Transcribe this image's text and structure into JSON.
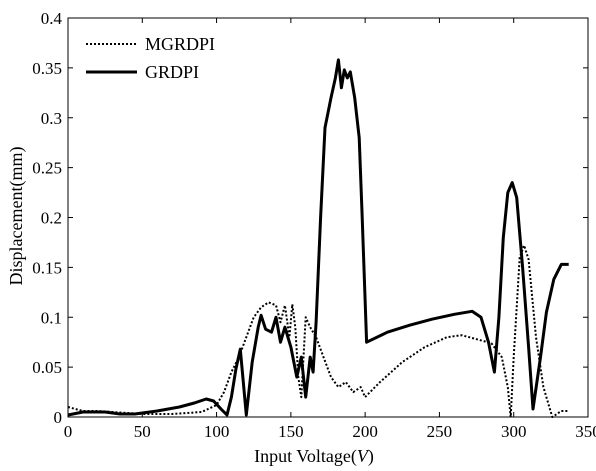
{
  "chart_data": {
    "type": "line",
    "xlabel": "Input Voltage(V)",
    "xlabel_parts": {
      "prefix": "Input Voltage(",
      "var": "V",
      "suffix": ")"
    },
    "ylabel": "Displacement(mm)",
    "xlim": [
      0,
      350
    ],
    "ylim": [
      0,
      0.4
    ],
    "xticks": [
      0,
      50,
      100,
      150,
      200,
      250,
      300,
      350
    ],
    "yticks": [
      0,
      0.05,
      0.1,
      0.15,
      0.2,
      0.25,
      0.3,
      0.35,
      0.4
    ],
    "xtick_labels": [
      "0",
      "50",
      "100",
      "150",
      "200",
      "250",
      "300",
      "350"
    ],
    "ytick_labels": [
      "0",
      "0.05",
      "0.1",
      "0.15",
      "0.2",
      "0.25",
      "0.3",
      "0.35",
      "0.4"
    ],
    "grid": false,
    "legend_position": "top-left",
    "series": [
      {
        "name": "MGRDPI",
        "style": "dotted",
        "color": "#000000",
        "points": [
          [
            0,
            0.01
          ],
          [
            5,
            0.008
          ],
          [
            10,
            0.006
          ],
          [
            20,
            0.006
          ],
          [
            30,
            0.005
          ],
          [
            40,
            0.004
          ],
          [
            50,
            0.003
          ],
          [
            60,
            0.003
          ],
          [
            70,
            0.003
          ],
          [
            80,
            0.004
          ],
          [
            90,
            0.005
          ],
          [
            100,
            0.012
          ],
          [
            105,
            0.025
          ],
          [
            110,
            0.045
          ],
          [
            115,
            0.06
          ],
          [
            120,
            0.08
          ],
          [
            125,
            0.1
          ],
          [
            130,
            0.11
          ],
          [
            135,
            0.115
          ],
          [
            140,
            0.112
          ],
          [
            143,
            0.095
          ],
          [
            146,
            0.112
          ],
          [
            149,
            0.08
          ],
          [
            151,
            0.113
          ],
          [
            153,
            0.09
          ],
          [
            155,
            0.04
          ],
          [
            157,
            0.02
          ],
          [
            160,
            0.1
          ],
          [
            163,
            0.09
          ],
          [
            167,
            0.08
          ],
          [
            172,
            0.06
          ],
          [
            177,
            0.04
          ],
          [
            182,
            0.03
          ],
          [
            187,
            0.035
          ],
          [
            192,
            0.025
          ],
          [
            197,
            0.03
          ],
          [
            200,
            0.02
          ],
          [
            210,
            0.035
          ],
          [
            225,
            0.055
          ],
          [
            240,
            0.07
          ],
          [
            255,
            0.08
          ],
          [
            265,
            0.082
          ],
          [
            275,
            0.078
          ],
          [
            285,
            0.074
          ],
          [
            292,
            0.06
          ],
          [
            296,
            0.03
          ],
          [
            298,
            0.0
          ],
          [
            300,
            0.06
          ],
          [
            304,
            0.16
          ],
          [
            307,
            0.172
          ],
          [
            310,
            0.158
          ],
          [
            315,
            0.08
          ],
          [
            320,
            0.03
          ],
          [
            326,
            0.0
          ],
          [
            332,
            0.006
          ],
          [
            337,
            0.006
          ]
        ]
      },
      {
        "name": "GRDPI",
        "style": "solid",
        "color": "#000000",
        "points": [
          [
            0,
            0.002
          ],
          [
            10,
            0.005
          ],
          [
            25,
            0.005
          ],
          [
            35,
            0.003
          ],
          [
            45,
            0.003
          ],
          [
            60,
            0.006
          ],
          [
            75,
            0.01
          ],
          [
            85,
            0.014
          ],
          [
            93,
            0.018
          ],
          [
            98,
            0.016
          ],
          [
            103,
            0.008
          ],
          [
            107,
            0.002
          ],
          [
            110,
            0.02
          ],
          [
            113,
            0.048
          ],
          [
            116,
            0.068
          ],
          [
            118,
            0.035
          ],
          [
            120,
            0.002
          ],
          [
            124,
            0.055
          ],
          [
            128,
            0.09
          ],
          [
            130,
            0.102
          ],
          [
            133,
            0.088
          ],
          [
            137,
            0.085
          ],
          [
            140,
            0.1
          ],
          [
            143,
            0.075
          ],
          [
            146,
            0.09
          ],
          [
            150,
            0.07
          ],
          [
            154,
            0.04
          ],
          [
            157,
            0.06
          ],
          [
            160,
            0.02
          ],
          [
            163,
            0.06
          ],
          [
            165,
            0.045
          ],
          [
            167,
            0.095
          ],
          [
            170,
            0.2
          ],
          [
            173,
            0.29
          ],
          [
            177,
            0.32
          ],
          [
            180,
            0.34
          ],
          [
            182,
            0.358
          ],
          [
            184,
            0.33
          ],
          [
            186,
            0.348
          ],
          [
            188,
            0.34
          ],
          [
            190,
            0.346
          ],
          [
            193,
            0.32
          ],
          [
            196,
            0.28
          ],
          [
            198,
            0.2
          ],
          [
            201,
            0.075
          ],
          [
            215,
            0.085
          ],
          [
            230,
            0.092
          ],
          [
            245,
            0.098
          ],
          [
            260,
            0.103
          ],
          [
            272,
            0.106
          ],
          [
            278,
            0.1
          ],
          [
            283,
            0.075
          ],
          [
            287,
            0.045
          ],
          [
            290,
            0.1
          ],
          [
            293,
            0.18
          ],
          [
            296,
            0.225
          ],
          [
            299,
            0.235
          ],
          [
            302,
            0.22
          ],
          [
            306,
            0.15
          ],
          [
            310,
            0.07
          ],
          [
            313,
            0.008
          ],
          [
            318,
            0.06
          ],
          [
            322,
            0.105
          ],
          [
            327,
            0.138
          ],
          [
            332,
            0.153
          ],
          [
            337,
            0.153
          ]
        ]
      }
    ]
  }
}
